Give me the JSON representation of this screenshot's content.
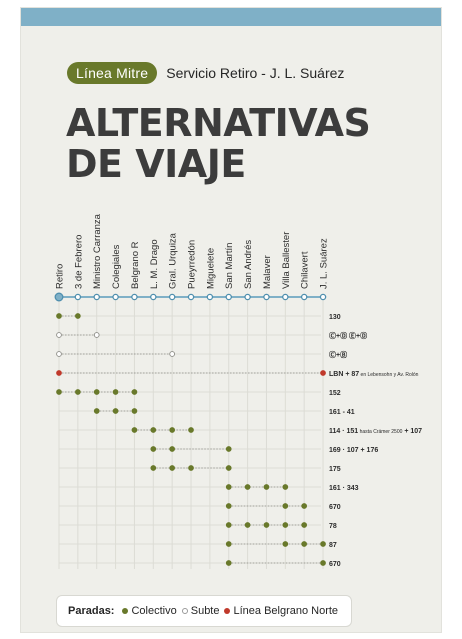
{
  "header": {
    "line_badge": "Línea Mitre",
    "service": "Servicio Retiro - J. L. Suárez",
    "title_line1": "ALTERNATIVAS",
    "title_line2": "DE VIAJE"
  },
  "colors": {
    "top_band": "#7fb0c7",
    "badge": "#69792b",
    "colectivo": "#69792b",
    "subte": "#ffffff",
    "belgrano_norte": "#c0392b",
    "rail_line": "#7fb0c7"
  },
  "stations": [
    "Retiro",
    "3 de Febrero",
    "Ministro Carranza",
    "Colegiales",
    "Belgrano R",
    "L. M. Drago",
    "Gral. Urquiza",
    "Pueyrredón",
    "Miguelete",
    "San Martín",
    "San Andrés",
    "Malaver",
    "Villa Ballester",
    "Chilavert",
    "J. L. Suárez"
  ],
  "connections": [
    {
      "label": "130",
      "type": "colectivo",
      "stops": [
        0,
        1
      ]
    },
    {
      "label": "Ⓒ+Ⓓ   Ⓔ+Ⓓ",
      "type": "subte",
      "stops": [
        0,
        2
      ]
    },
    {
      "label": "Ⓒ+Ⓑ",
      "type": "subte",
      "stops": [
        0,
        6
      ]
    },
    {
      "label": "LBN + 87",
      "note": "en Lebensohn y Av. Rolón",
      "type": "belgrano_norte",
      "stops": [
        0,
        14
      ]
    },
    {
      "label": "152",
      "type": "colectivo",
      "stops": [
        0,
        1,
        2,
        3,
        4
      ]
    },
    {
      "label": "161 - 41",
      "type": "colectivo",
      "stops": [
        2,
        3,
        4
      ]
    },
    {
      "label": "114 · 151",
      "note": "hasta Crámer 2500",
      "label2": "+ 107",
      "type": "colectivo",
      "stops": [
        4,
        5,
        6,
        7
      ]
    },
    {
      "label": "169 · 107 + 176",
      "type": "colectivo",
      "stops": [
        5,
        6,
        9
      ]
    },
    {
      "label": "175",
      "type": "colectivo",
      "stops": [
        5,
        6,
        7,
        9
      ]
    },
    {
      "label": "161 · 343",
      "type": "colectivo",
      "stops": [
        9,
        10,
        11,
        12
      ]
    },
    {
      "label": "670",
      "type": "colectivo",
      "stops": [
        9,
        12,
        13
      ]
    },
    {
      "label": "78",
      "type": "colectivo",
      "stops": [
        9,
        10,
        11,
        12,
        13
      ]
    },
    {
      "label": "87",
      "type": "colectivo",
      "stops": [
        9,
        12,
        13,
        14
      ]
    },
    {
      "label": "670",
      "type": "colectivo",
      "stops": [
        9,
        14
      ]
    }
  ],
  "legend": {
    "title": "Paradas:",
    "colectivo": "Colectivo",
    "subte": "Subte",
    "belgrano_norte": "Línea Belgrano Norte"
  }
}
